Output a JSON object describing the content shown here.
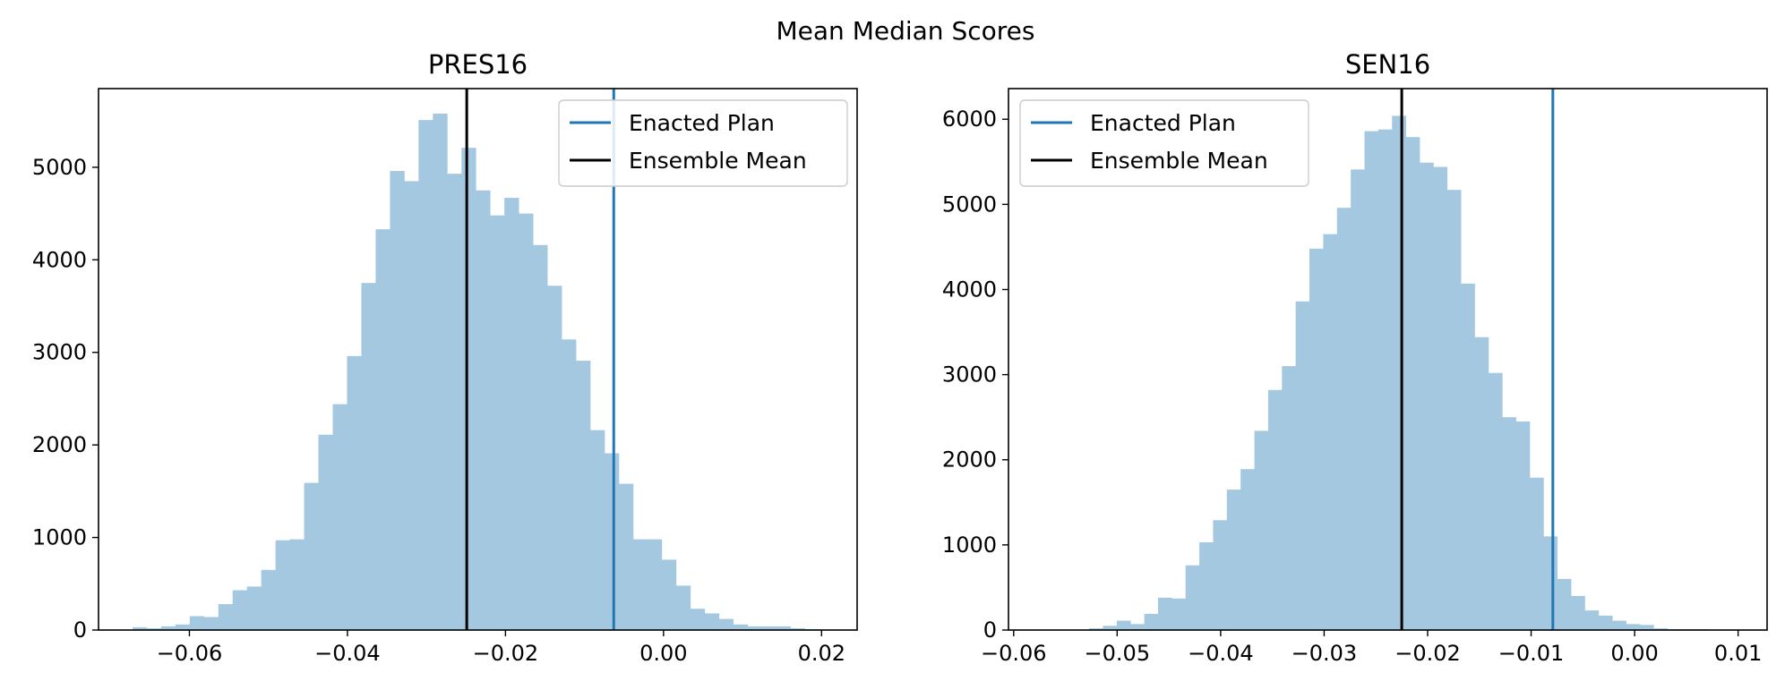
{
  "figure": {
    "suptitle": "Mean Median Scores"
  },
  "colors": {
    "bars": "#a5c8e1",
    "enacted": "#1f77b4",
    "mean": "#000000"
  },
  "chart_data": [
    {
      "type": "bar",
      "title": "PRES16",
      "xlabel": "",
      "ylabel": "",
      "xlim": [
        -0.0715,
        0.0245
      ],
      "ylim": [
        0,
        5850
      ],
      "xticks": [
        -0.06,
        -0.04,
        -0.02,
        0.0,
        0.02
      ],
      "xtick_labels": [
        "−0.06",
        "−0.04",
        "−0.02",
        "0.00",
        "0.02"
      ],
      "yticks": [
        0,
        1000,
        2000,
        3000,
        4000,
        5000
      ],
      "ytick_labels": [
        "0",
        "1000",
        "2000",
        "3000",
        "4000",
        "5000"
      ],
      "hist": {
        "start": -0.0672,
        "bin_width": 0.00181,
        "counts": [
          30,
          20,
          40,
          60,
          150,
          140,
          280,
          430,
          470,
          650,
          970,
          980,
          1590,
          2110,
          2440,
          2960,
          3750,
          4330,
          4960,
          4850,
          5510,
          5580,
          4930,
          5210,
          4750,
          4480,
          4670,
          4500,
          4160,
          3720,
          3140,
          2910,
          2160,
          1910,
          1580,
          980,
          980,
          760,
          480,
          230,
          180,
          120,
          60,
          40,
          40,
          40,
          20,
          10
        ]
      },
      "lines": [
        {
          "name": "Enacted Plan",
          "x": -0.0063
        },
        {
          "name": "Ensemble Mean",
          "x": -0.0249
        }
      ],
      "legend": {
        "placement": "top-right",
        "entries": [
          "Enacted Plan",
          "Ensemble Mean"
        ]
      }
    },
    {
      "type": "bar",
      "title": "SEN16",
      "xlabel": "",
      "ylabel": "",
      "xlim": [
        -0.0605,
        0.0128
      ],
      "ylim": [
        0,
        6360
      ],
      "xticks": [
        -0.06,
        -0.05,
        -0.04,
        -0.03,
        -0.02,
        -0.01,
        0.0,
        0.01
      ],
      "xtick_labels": [
        "−0.06",
        "−0.05",
        "−0.04",
        "−0.03",
        "−0.02",
        "−0.01",
        "0.00",
        "0.01"
      ],
      "yticks": [
        0,
        1000,
        2000,
        3000,
        4000,
        5000,
        6000
      ],
      "ytick_labels": [
        "0",
        "1000",
        "2000",
        "3000",
        "4000",
        "5000",
        "6000"
      ],
      "hist": {
        "start": -0.0527,
        "bin_width": 0.00133,
        "counts": [
          20,
          50,
          110,
          70,
          190,
          380,
          370,
          760,
          1030,
          1290,
          1650,
          1890,
          2340,
          2820,
          3100,
          3860,
          4480,
          4650,
          4960,
          5410,
          5860,
          5880,
          6040,
          5790,
          5490,
          5440,
          5170,
          4070,
          3440,
          3020,
          2500,
          2450,
          1790,
          1100,
          600,
          400,
          230,
          170,
          110,
          70,
          60,
          20,
          10,
          10,
          10
        ]
      },
      "lines": [
        {
          "name": "Enacted Plan",
          "x": -0.0079
        },
        {
          "name": "Ensemble Mean",
          "x": -0.0225
        }
      ],
      "legend": {
        "placement": "top-left",
        "entries": [
          "Enacted Plan",
          "Ensemble Mean"
        ]
      }
    }
  ]
}
